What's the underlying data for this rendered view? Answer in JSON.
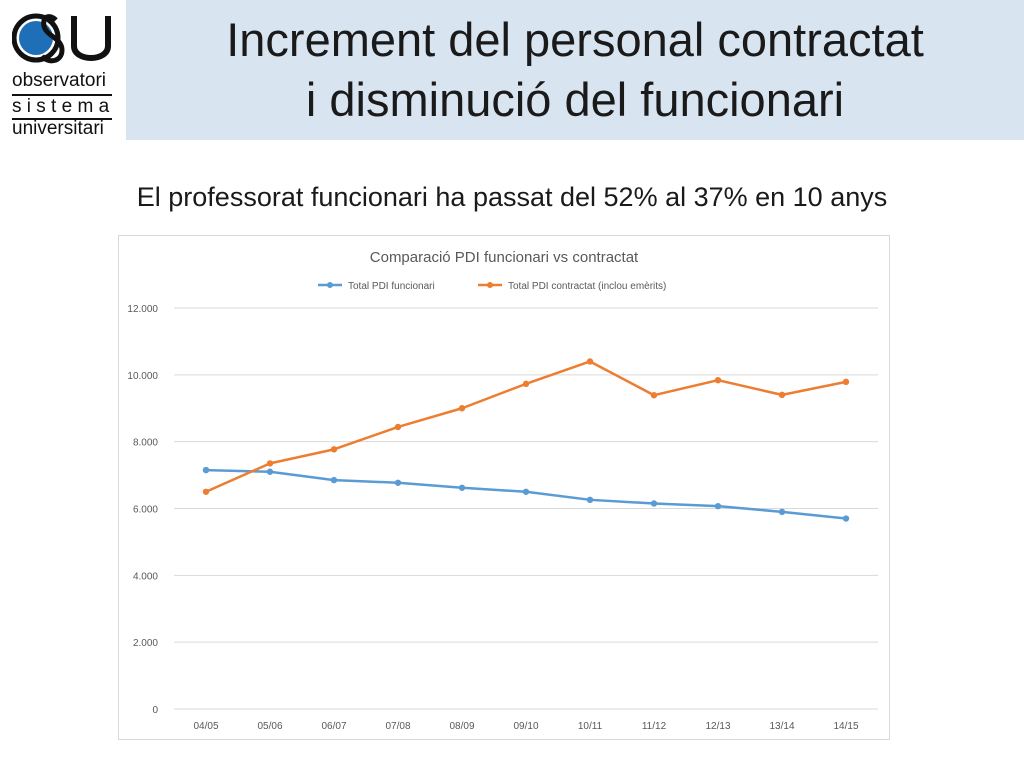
{
  "logo": {
    "mark": "OSU",
    "line1": "observatori",
    "line2": "s i s t e m a",
    "line3": "universitari"
  },
  "slide": {
    "title_line1": "Increment del personal contractat",
    "title_line2": "i disminució del funcionari",
    "subtitle": "El professorat funcionari ha passat del 52% al 37% en 10 anys"
  },
  "colors": {
    "series_funcionari": "#5b9bd5",
    "series_contractat": "#ed7d31",
    "grid": "#d9d9d9",
    "axis_text": "#595959"
  },
  "chart_data": {
    "type": "line",
    "title": "Comparació PDI funcionari vs contractat",
    "legend_position": "top",
    "grid": true,
    "x": [
      "04/05",
      "05/06",
      "06/07",
      "07/08",
      "08/09",
      "09/10",
      "10/11",
      "11/12",
      "12/13",
      "13/14",
      "14/15"
    ],
    "ylim": [
      0,
      12000
    ],
    "y_ticks": [
      0,
      2000,
      4000,
      6000,
      8000,
      10000,
      12000
    ],
    "y_tick_labels": [
      "0",
      "2.000",
      "4.000",
      "6.000",
      "8.000",
      "10.000",
      "12.000"
    ],
    "series": [
      {
        "name": "Total PDI funcionari",
        "values": [
          7150,
          7100,
          6850,
          6770,
          6620,
          6500,
          6260,
          6150,
          6070,
          5900,
          5700
        ]
      },
      {
        "name": "Total PDI contractat (inclou emèrits)",
        "values": [
          6500,
          7350,
          7770,
          8440,
          9000,
          9730,
          10400,
          9390,
          9840,
          9400,
          9790
        ]
      }
    ]
  }
}
